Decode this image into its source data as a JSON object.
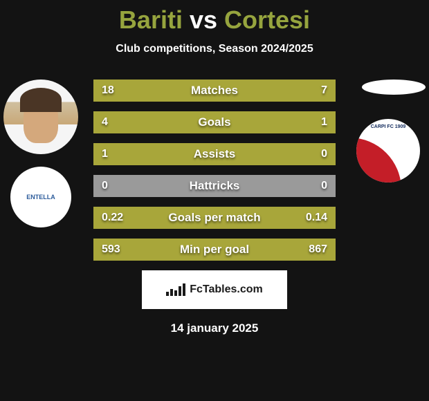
{
  "title": {
    "player1": "Bariti",
    "vs": "vs",
    "player2": "Cortesi"
  },
  "subtitle": "Club competitions, Season 2024/2025",
  "stats": [
    {
      "label": "Matches",
      "left_val": "18",
      "right_val": "7",
      "left_pct": 72,
      "right_pct": 28
    },
    {
      "label": "Goals",
      "left_val": "4",
      "right_val": "1",
      "left_pct": 80,
      "right_pct": 20
    },
    {
      "label": "Assists",
      "left_val": "1",
      "right_val": "0",
      "left_pct": 100,
      "right_pct": 0
    },
    {
      "label": "Hattricks",
      "left_val": "0",
      "right_val": "0",
      "left_pct": 0,
      "right_pct": 0
    },
    {
      "label": "Goals per match",
      "left_val": "0.22",
      "right_val": "0.14",
      "left_pct": 61,
      "right_pct": 39
    },
    {
      "label": "Min per goal",
      "left_val": "593",
      "right_val": "867",
      "left_pct": 40.5,
      "right_pct": 59.5
    }
  ],
  "colors": {
    "bar_filled": "#a8a63a",
    "bar_empty": "#9a9a9a",
    "accent": "#96a43e",
    "background": "#131313",
    "text_light": "#ffffff"
  },
  "left_club": "ENTELLA",
  "right_club": "CARPI FC 1909",
  "footer_brand": "FcTables.com",
  "footer_date": "14 january 2025"
}
